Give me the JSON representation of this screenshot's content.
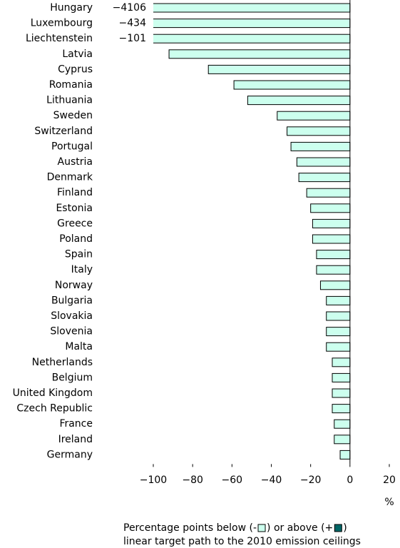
{
  "chart_data": {
    "type": "barh",
    "categories": [
      "Hungary",
      "Luxembourg",
      "Liechtenstein",
      "Latvia",
      "Cyprus",
      "Romania",
      "Lithuania",
      "Sweden",
      "Switzerland",
      "Portugal",
      "Austria",
      "Denmark",
      "Finland",
      "Estonia",
      "Greece",
      "Poland",
      "Spain",
      "Italy",
      "Norway",
      "Bulgaria",
      "Slovakia",
      "Slovenia",
      "Malta",
      "Netherlands",
      "Belgium",
      "United Kingdom",
      "Czech Republic",
      "France",
      "Ireland",
      "Germany"
    ],
    "values": [
      -4106,
      -434,
      -101,
      -92,
      -72,
      -59,
      -52,
      -37,
      -32,
      -30,
      -27,
      -26,
      -22,
      -20,
      -19,
      -19,
      -17,
      -17,
      -15,
      -12,
      -12,
      -12,
      -12,
      -9,
      -9,
      -9,
      -9,
      -8,
      -8,
      -5
    ],
    "value_labels": [
      "−4106",
      "−434",
      "−101",
      null,
      null,
      null,
      null,
      null,
      null,
      null,
      null,
      null,
      null,
      null,
      null,
      null,
      null,
      null,
      null,
      null,
      null,
      null,
      null,
      null,
      null,
      null,
      null,
      null,
      null,
      null
    ],
    "color": "#ccffee",
    "xlim": [
      -100,
      20
    ],
    "xticks": [
      {
        "value": -100,
        "label": "−100"
      },
      {
        "value": -80,
        "label": "−80"
      },
      {
        "value": -60,
        "label": "−60"
      },
      {
        "value": -40,
        "label": "−40"
      },
      {
        "value": -20,
        "label": "−20"
      },
      0,
      20
    ],
    "xlabel": "%",
    "legend": {
      "texts": [
        "Percentage points below (-",
        ") or above (+",
        ")",
        "linear target path to the 2010 emission ceilings"
      ],
      "colors": [
        "#ccffee",
        "#006666"
      ]
    }
  }
}
